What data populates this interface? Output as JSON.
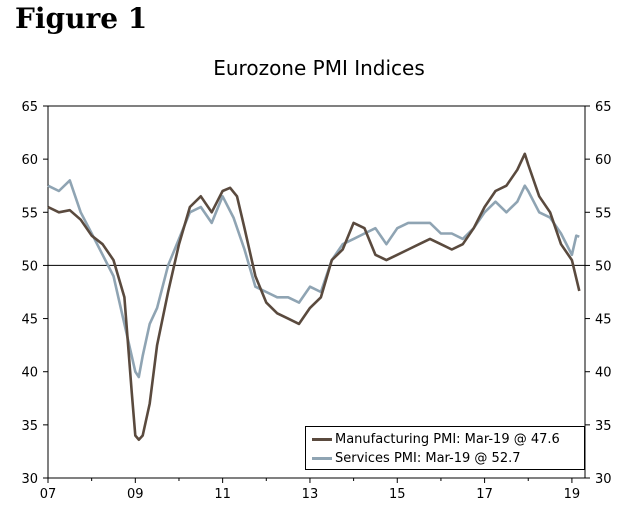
{
  "figure_label": "Figure 1",
  "chart_data": {
    "type": "line",
    "title": "Eurozone PMI Indices",
    "xlabel": "",
    "ylabel": "",
    "x_ticks": [
      "07",
      "09",
      "11",
      "13",
      "15",
      "17",
      "19"
    ],
    "y_ticks": [
      "30",
      "35",
      "40",
      "45",
      "50",
      "55",
      "60",
      "65"
    ],
    "ylim": [
      30,
      65
    ],
    "xlim": [
      2007.0,
      2019.3
    ],
    "reference_line": 50,
    "grid": false,
    "legend_position": "bottom-right",
    "series": [
      {
        "name": "Manufacturing PMI: Mar-19 @ 47.6",
        "color": "#5a4a3e",
        "x": [
          2007.0,
          2007.25,
          2007.5,
          2007.75,
          2008.0,
          2008.25,
          2008.5,
          2008.75,
          2008.92,
          2009.0,
          2009.08,
          2009.17,
          2009.33,
          2009.5,
          2009.75,
          2010.0,
          2010.25,
          2010.5,
          2010.75,
          2011.0,
          2011.17,
          2011.33,
          2011.5,
          2011.75,
          2012.0,
          2012.25,
          2012.5,
          2012.75,
          2013.0,
          2013.25,
          2013.5,
          2013.75,
          2014.0,
          2014.25,
          2014.5,
          2014.75,
          2015.0,
          2015.25,
          2015.5,
          2015.75,
          2016.0,
          2016.25,
          2016.5,
          2016.75,
          2017.0,
          2017.25,
          2017.5,
          2017.75,
          2017.92,
          2018.0,
          2018.25,
          2018.5,
          2018.75,
          2019.0,
          2019.17
        ],
        "values": [
          55.5,
          55.0,
          55.2,
          54.3,
          52.8,
          52.0,
          50.5,
          47.0,
          38.0,
          34.0,
          33.6,
          34.0,
          37.0,
          42.5,
          47.5,
          52.0,
          55.5,
          56.5,
          55.0,
          57.0,
          57.3,
          56.5,
          53.5,
          49.0,
          46.5,
          45.5,
          45.0,
          44.5,
          46.0,
          47.0,
          50.5,
          51.5,
          54.0,
          53.5,
          51.0,
          50.5,
          51.0,
          51.5,
          52.0,
          52.5,
          52.0,
          51.5,
          52.0,
          53.5,
          55.5,
          57.0,
          57.5,
          59.0,
          60.5,
          59.5,
          56.5,
          55.0,
          52.0,
          50.5,
          47.6
        ]
      },
      {
        "name": "Services PMI: Mar-19 @ 52.7",
        "color": "#8fa4b3",
        "x": [
          2007.0,
          2007.25,
          2007.5,
          2007.75,
          2008.0,
          2008.25,
          2008.5,
          2008.75,
          2009.0,
          2009.08,
          2009.17,
          2009.33,
          2009.5,
          2009.75,
          2010.0,
          2010.25,
          2010.5,
          2010.75,
          2011.0,
          2011.25,
          2011.5,
          2011.75,
          2012.0,
          2012.25,
          2012.5,
          2012.75,
          2013.0,
          2013.25,
          2013.5,
          2013.75,
          2014.0,
          2014.25,
          2014.5,
          2014.75,
          2015.0,
          2015.25,
          2015.5,
          2015.75,
          2016.0,
          2016.25,
          2016.5,
          2016.75,
          2017.0,
          2017.25,
          2017.5,
          2017.75,
          2017.92,
          2018.0,
          2018.25,
          2018.5,
          2018.75,
          2019.0,
          2019.1,
          2019.17
        ],
        "values": [
          57.5,
          57.0,
          58.0,
          55.0,
          53.0,
          51.0,
          49.0,
          44.5,
          40.0,
          39.5,
          41.5,
          44.5,
          46.0,
          50.0,
          52.5,
          55.0,
          55.5,
          54.0,
          56.5,
          54.5,
          51.5,
          48.0,
          47.5,
          47.0,
          47.0,
          46.5,
          48.0,
          47.5,
          50.5,
          52.0,
          52.5,
          53.0,
          53.5,
          52.0,
          53.5,
          54.0,
          54.0,
          54.0,
          53.0,
          53.0,
          52.5,
          53.5,
          55.0,
          56.0,
          55.0,
          56.0,
          57.5,
          57.0,
          55.0,
          54.5,
          53.0,
          51.0,
          52.8,
          52.7
        ]
      }
    ]
  }
}
